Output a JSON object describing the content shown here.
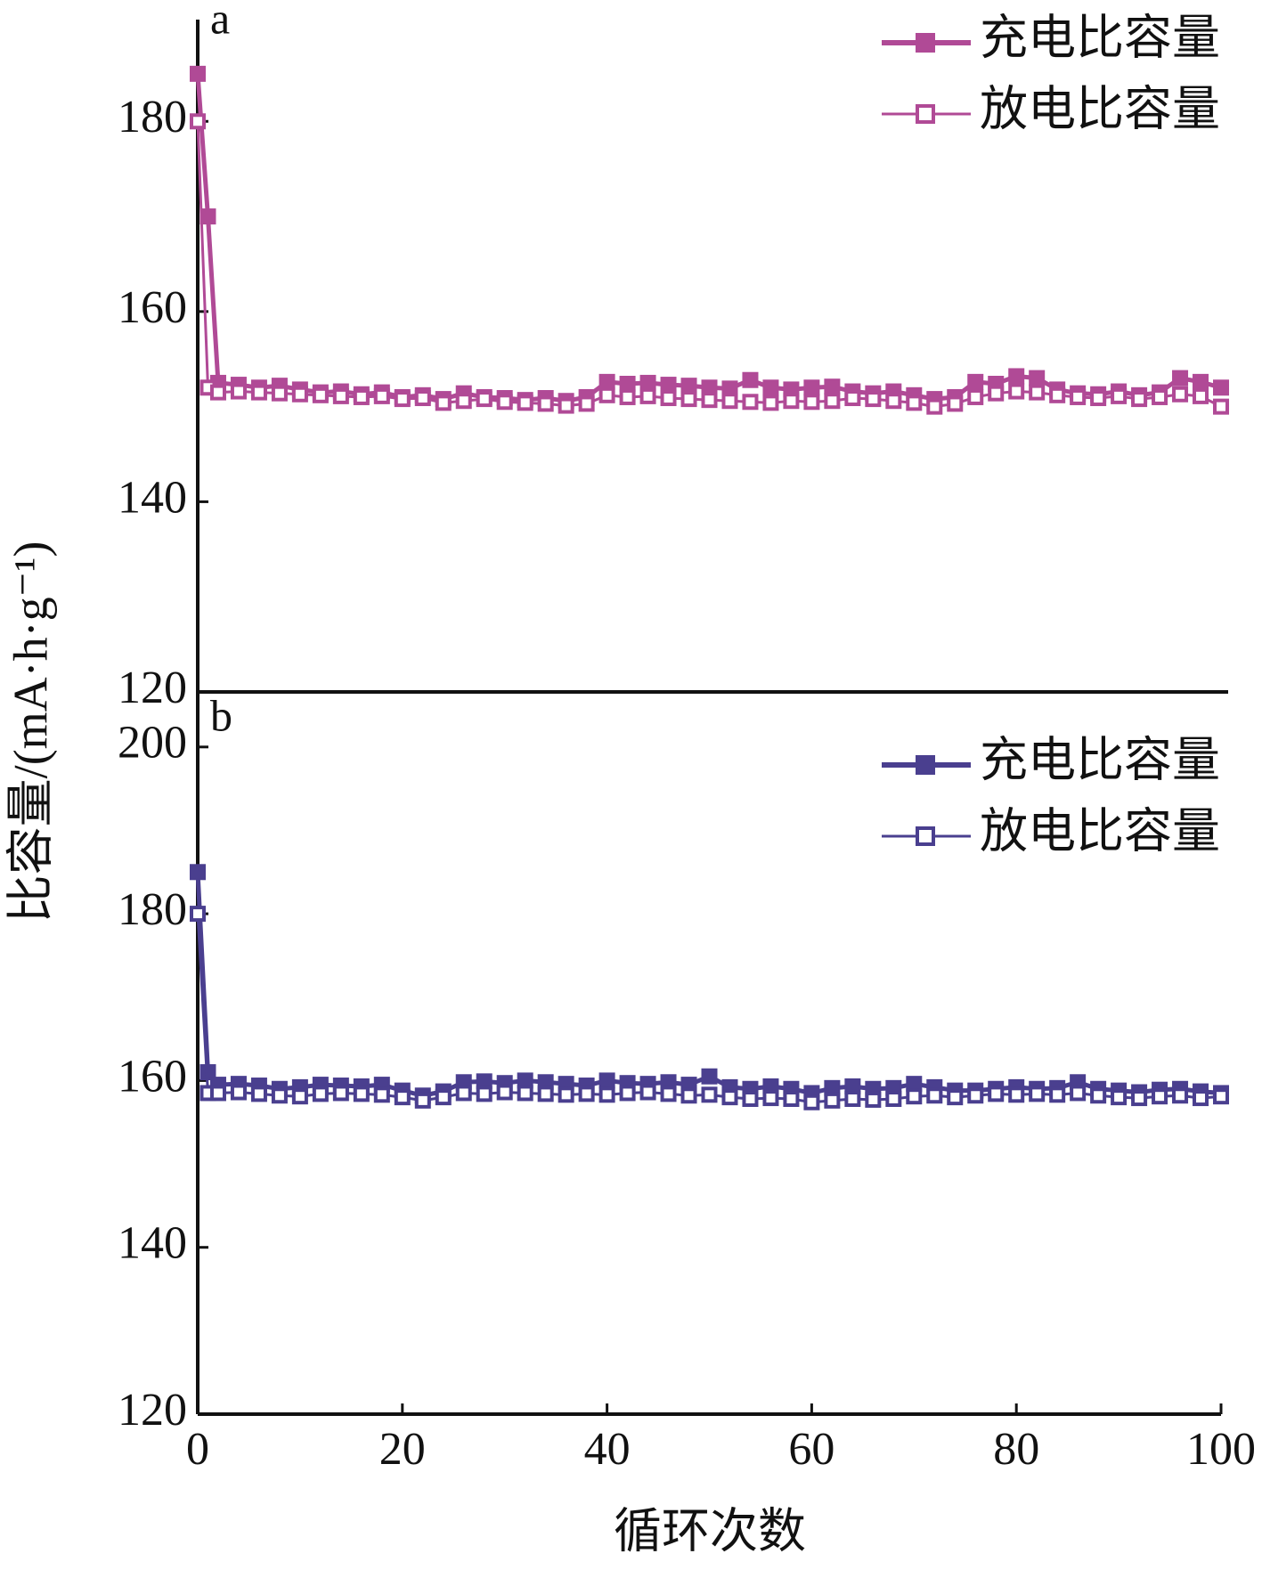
{
  "chart_data": [
    {
      "type": "line",
      "panel_label": "a",
      "x": [
        0,
        1,
        2,
        4,
        6,
        8,
        10,
        12,
        14,
        16,
        18,
        20,
        22,
        24,
        26,
        28,
        30,
        32,
        34,
        36,
        38,
        40,
        42,
        44,
        46,
        48,
        50,
        52,
        54,
        56,
        58,
        60,
        62,
        64,
        66,
        68,
        70,
        72,
        74,
        76,
        78,
        80,
        82,
        84,
        86,
        88,
        90,
        92,
        94,
        96,
        98,
        100
      ],
      "xlim": [
        0,
        100
      ],
      "ylim": [
        120,
        190.7
      ],
      "yticks": [
        120,
        140,
        160,
        180
      ],
      "legend": "upper right",
      "series": [
        {
          "name": "充电比容量",
          "color": "#b04a96",
          "filled": true,
          "values": [
            185,
            170,
            152.5,
            152.3,
            152,
            152.2,
            151.8,
            151.5,
            151.6,
            151.3,
            151.5,
            151,
            151.2,
            150.8,
            151.4,
            151,
            150.9,
            150.7,
            150.9,
            150.6,
            151,
            152.6,
            152.4,
            152.5,
            152.3,
            152.2,
            152,
            151.9,
            152.8,
            152,
            151.8,
            152,
            152.1,
            151.6,
            151.4,
            151.6,
            151.2,
            150.8,
            151,
            152.6,
            152.4,
            153.2,
            153,
            151.8,
            151.4,
            151.3,
            151.6,
            151.2,
            151.5,
            153,
            152.6,
            152
          ]
        },
        {
          "name": "放电比容量",
          "color": "#b04a96",
          "filled": false,
          "values": [
            180,
            152,
            151.5,
            151.6,
            151.5,
            151.4,
            151.3,
            151.2,
            151.1,
            151,
            151.1,
            150.8,
            150.9,
            150.4,
            150.6,
            150.8,
            150.5,
            150.4,
            150.3,
            150.1,
            150.3,
            151.2,
            151,
            151.1,
            150.9,
            150.8,
            150.7,
            150.6,
            150.5,
            150.4,
            150.6,
            150.5,
            150.6,
            150.9,
            150.8,
            150.6,
            150.4,
            150,
            150.3,
            151,
            151.4,
            151.6,
            151.5,
            151.2,
            151,
            150.9,
            151.1,
            150.8,
            151,
            151.3,
            151.1,
            150
          ]
        }
      ]
    },
    {
      "type": "line",
      "panel_label": "b",
      "x": [
        0,
        1,
        2,
        4,
        6,
        8,
        10,
        12,
        14,
        16,
        18,
        20,
        22,
        24,
        26,
        28,
        30,
        32,
        34,
        36,
        38,
        40,
        42,
        44,
        46,
        48,
        50,
        52,
        54,
        56,
        58,
        60,
        62,
        64,
        66,
        68,
        70,
        72,
        74,
        76,
        78,
        80,
        82,
        84,
        86,
        88,
        90,
        92,
        94,
        96,
        98,
        100
      ],
      "xlim": [
        0,
        100
      ],
      "xticks": [
        0,
        20,
        40,
        60,
        80,
        100
      ],
      "ylim": [
        120,
        206.6
      ],
      "yticks": [
        120,
        140,
        160,
        180,
        200
      ],
      "legend": "upper right",
      "xlabel": "循环次数",
      "ylabel": "比容量/(mA·h·g⁻¹)",
      "series": [
        {
          "name": "充电比容量",
          "color": "#4a3f8f",
          "filled": true,
          "values": [
            185,
            161,
            159.5,
            159.6,
            159.4,
            159,
            159.2,
            159.5,
            159.4,
            159.3,
            159.5,
            158.8,
            158.2,
            158.7,
            159.8,
            159.9,
            159.7,
            160,
            159.8,
            159.6,
            159.4,
            160,
            159.7,
            159.6,
            159.8,
            159.5,
            160.5,
            159.2,
            159,
            159.3,
            159,
            158.5,
            159.1,
            159.3,
            159,
            159.1,
            159.6,
            159.2,
            158.8,
            158.8,
            159,
            159.2,
            159,
            159.1,
            159.8,
            159,
            158.8,
            158.6,
            158.9,
            159,
            158.7,
            158.5
          ]
        },
        {
          "name": "放电比容量",
          "color": "#4a3f8f",
          "filled": false,
          "values": [
            180,
            158.5,
            158.5,
            158.6,
            158.4,
            158.2,
            158.1,
            158.4,
            158.5,
            158.4,
            158.3,
            158,
            157.6,
            158,
            158.5,
            158.4,
            158.6,
            158.5,
            158.4,
            158.3,
            158.4,
            158.3,
            158.5,
            158.6,
            158.4,
            158.2,
            158.3,
            158,
            157.8,
            157.9,
            157.8,
            157.4,
            157.6,
            157.8,
            157.7,
            157.8,
            158.1,
            158.2,
            158,
            158.2,
            158.4,
            158.3,
            158.4,
            158.3,
            158.5,
            158.2,
            158,
            157.9,
            158.1,
            158.2,
            157.9,
            158.1
          ]
        }
      ]
    }
  ]
}
